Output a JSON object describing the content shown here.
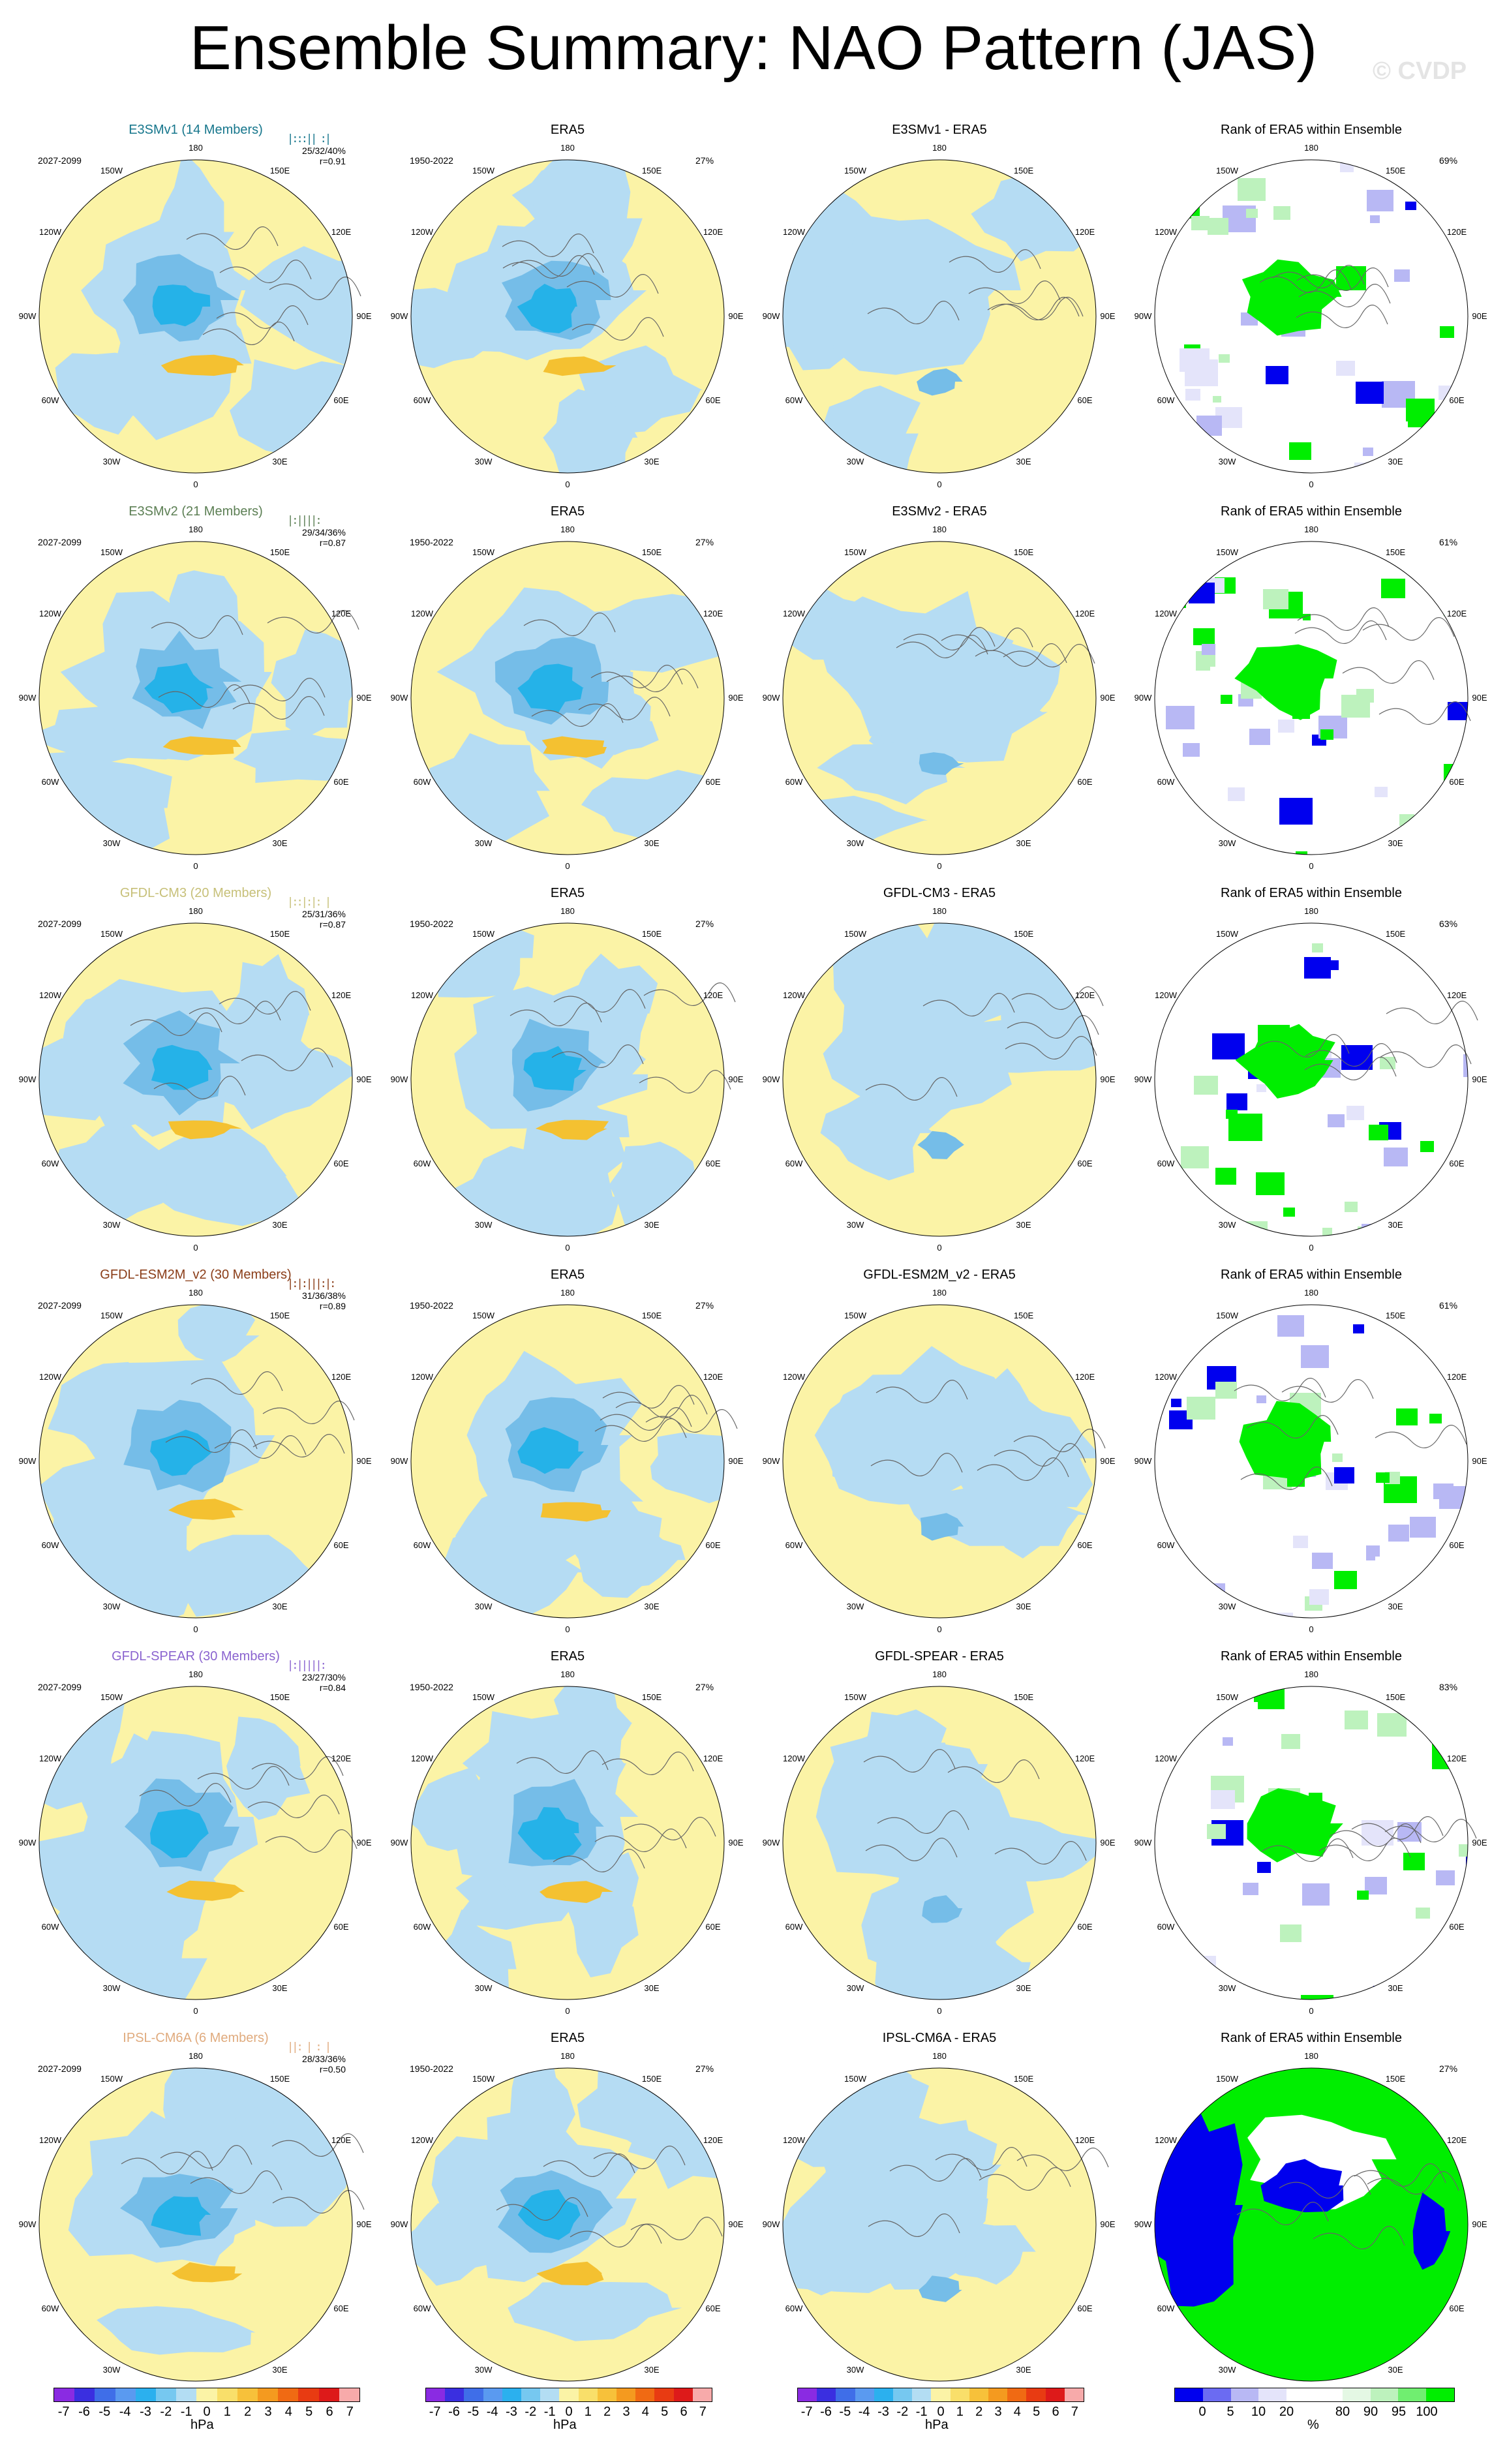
{
  "page": {
    "title": "Ensemble Summary: NAO Pattern (JAS)",
    "watermark": "© CVDP"
  },
  "colors": {
    "pos_fill": "#fbf3a6",
    "neg_fill": "#b5dcf3",
    "neg_mid": "#75bde8",
    "neg_strong": "#25b2e8",
    "pos_mid": "#f4c131",
    "rank_blue": "#0000ee",
    "rank_lightblue": "#b8b8f4",
    "rank_green": "#00ee00",
    "rank_lightgreen": "#bdf2bd"
  },
  "lon_labels": [
    "180",
    "150E",
    "120E",
    "90E",
    "60E",
    "30E",
    "0",
    "30W",
    "60W",
    "90W",
    "120W",
    "150W"
  ],
  "rows": [
    {
      "model": "E3SMv1 (14 Members)",
      "model_color": "#16768c",
      "period": "2027-2099",
      "stats1": "25/32/40%",
      "stats2": "r=0.91",
      "glyph": "|:::|| :|",
      "era5_period": "1950-2022",
      "era5_pct": "27%",
      "diff_title": "E3SMv1 - ERA5",
      "rank_pct": "69%"
    },
    {
      "model": "E3SMv2 (21 Members)",
      "model_color": "#5c7f54",
      "period": "2027-2099",
      "stats1": "29/34/36%",
      "stats2": "r=0.87",
      "glyph": "|:||||:  ",
      "era5_period": "1950-2022",
      "era5_pct": "27%",
      "diff_title": "E3SMv2 - ERA5",
      "rank_pct": "61%"
    },
    {
      "model": "GFDL-CM3 (20 Members)",
      "model_color": "#c7c079",
      "period": "2027-2099",
      "stats1": "25/31/36%",
      "stats2": "r=0.87",
      "glyph": "|::|:|: |",
      "era5_period": "1950-2022",
      "era5_pct": "27%",
      "diff_title": "GFDL-CM3 - ERA5",
      "rank_pct": "63%"
    },
    {
      "model": "GFDL-ESM2M_v2 (30 Members)",
      "model_color": "#8a3d18",
      "period": "2027-2099",
      "stats1": "31/36/38%",
      "stats2": "r=0.89",
      "glyph": "|:|:|||:|:",
      "era5_period": "1950-2022",
      "era5_pct": "27%",
      "diff_title": "GFDL-ESM2M_v2 - ERA5",
      "rank_pct": "61%"
    },
    {
      "model": "GFDL-SPEAR (30 Members)",
      "model_color": "#8a63cf",
      "period": "2027-2099",
      "stats1": "23/27/30%",
      "stats2": "r=0.84",
      "glyph": " |:|||||: ",
      "era5_period": "1950-2022",
      "era5_pct": "27%",
      "diff_title": "GFDL-SPEAR - ERA5",
      "rank_pct": "83%"
    },
    {
      "model": "IPSL-CM6A (6 Members)",
      "model_color": "#e0ab7e",
      "period": "2027-2099",
      "stats1": "28/33/36%",
      "stats2": "r=0.50",
      "glyph": "||: | :  |",
      "era5_period": "1950-2022",
      "era5_pct": "27%",
      "diff_title": "IPSL-CM6A - ERA5",
      "rank_pct": "27%"
    }
  ],
  "shared": {
    "era5_title": "ERA5",
    "rank_title": "Rank of ERA5 within Ensemble"
  },
  "colorbar_hpa": {
    "colors": [
      "#8a2be2",
      "#3a2fe0",
      "#3f6ee8",
      "#5a9af0",
      "#2bb0ee",
      "#76c8f0",
      "#b3ddf3",
      "#fbf3a6",
      "#f9df6a",
      "#f7c13a",
      "#f49a1f",
      "#f06a13",
      "#e83b12",
      "#dd1a1a",
      "#f7aaaa"
    ],
    "ticks": [
      "-7",
      "-6",
      "-5",
      "-4",
      "-3",
      "-2",
      "-1",
      "0",
      "1",
      "2",
      "3",
      "4",
      "5",
      "6",
      "7"
    ],
    "unit": "hPa"
  },
  "colorbar_rank": {
    "colors": [
      "#0000ee",
      "#6b6bf2",
      "#b8b8f4",
      "#e4e4fa",
      "#ffffff",
      "#ffffff",
      "#e4f8e4",
      "#bdf2bd",
      "#70ee70",
      "#00ee00"
    ],
    "ticks": [
      "0",
      "5",
      "10",
      "20",
      "80",
      "90",
      "95",
      "100"
    ],
    "unit": "%"
  }
}
